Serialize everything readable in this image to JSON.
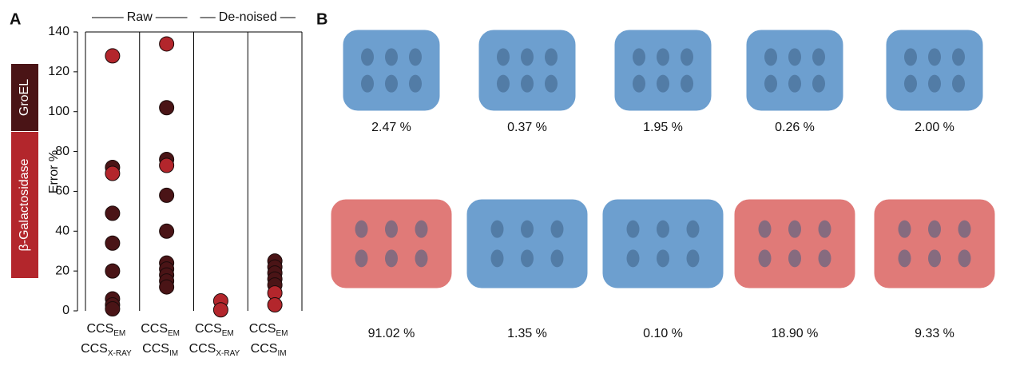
{
  "chart_data": {
    "type": "strip",
    "panel_label": "A",
    "y_label": "Error %",
    "ylim": [
      0,
      140
    ],
    "yticks": [
      0,
      20,
      40,
      60,
      80,
      100,
      120,
      140
    ],
    "groups": [
      {
        "label": "Raw",
        "span": [
          0,
          1
        ]
      },
      {
        "label": "De-noised",
        "span": [
          2,
          3
        ]
      }
    ],
    "categories": [
      [
        {
          "base": "CCS",
          "sub": "EM"
        },
        {
          "base": "CCS",
          "sub": "X-RAY"
        }
      ],
      [
        {
          "base": "CCS",
          "sub": "EM"
        },
        {
          "base": "CCS",
          "sub": "IM"
        }
      ],
      [
        {
          "base": "CCS",
          "sub": "EM"
        },
        {
          "base": "CCS",
          "sub": "X-RAY"
        }
      ],
      [
        {
          "base": "CCS",
          "sub": "EM"
        },
        {
          "base": "CCS",
          "sub": "IM"
        }
      ]
    ],
    "series": [
      {
        "name": "GroEL",
        "color": "#4a1416",
        "values": [
          [
            72,
            49,
            34,
            20,
            6,
            3,
            1
          ],
          [
            102,
            76,
            58,
            40,
            24,
            21,
            18,
            15,
            12
          ],
          [],
          [
            25,
            22,
            19,
            16,
            13
          ]
        ]
      },
      {
        "name": "β-Galactosidase",
        "color": "#b3262c",
        "values": [
          [
            128,
            69
          ],
          [
            134,
            73
          ],
          [
            5,
            0.5
          ],
          [
            9,
            3
          ]
        ]
      }
    ]
  },
  "panel_b": {
    "panel_label": "B",
    "maps": [
      {
        "label": "2.47 %",
        "color": "#6d9fcf"
      },
      {
        "label": "0.37 %",
        "color": "#6d9fcf"
      },
      {
        "label": "1.95 %",
        "color": "#6d9fcf"
      },
      {
        "label": "0.26 %",
        "color": "#6d9fcf"
      },
      {
        "label": "2.00 %",
        "color": "#6d9fcf"
      },
      {
        "label": "91.02 %",
        "color": "#e07a78"
      },
      {
        "label": "1.35 %",
        "color": "#6d9fcf"
      },
      {
        "label": "0.10 %",
        "color": "#6d9fcf"
      },
      {
        "label": "18.90 %",
        "color": "#e07a78"
      },
      {
        "label": "9.33 %",
        "color": "#e07a78"
      }
    ]
  }
}
